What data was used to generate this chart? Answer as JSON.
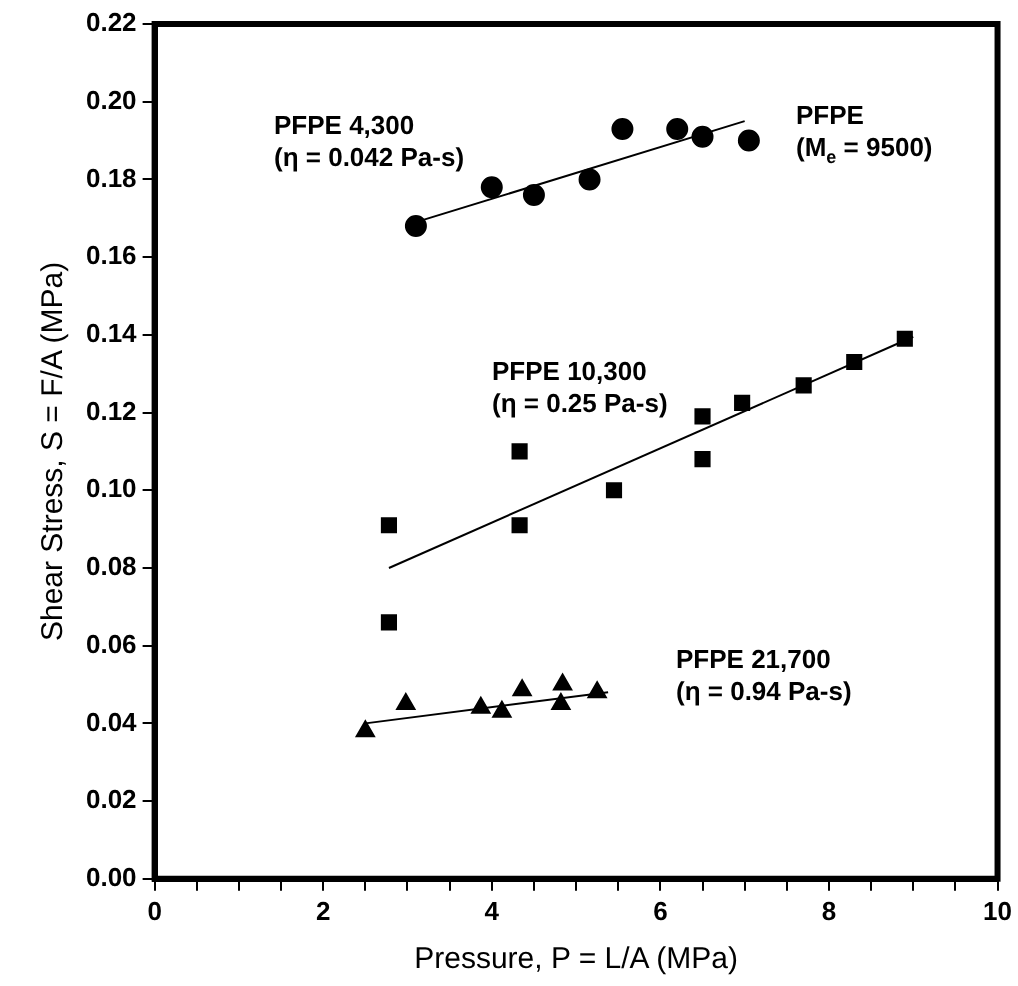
{
  "chart_data": {
    "type": "scatter",
    "xlabel": "Pressure, P = L/A (MPa)",
    "ylabel": "Shear Stress, S = F/A (MPa)",
    "xlim": [
      0,
      10
    ],
    "xticks": [
      0,
      {
        "value": 0.5,
        "label": null
      },
      {
        "value": 1,
        "label": null
      },
      {
        "value": 1.5,
        "label": null
      },
      2,
      {
        "value": 2.5,
        "label": null
      },
      {
        "value": 3,
        "label": null
      },
      {
        "value": 3.5,
        "label": null
      },
      4,
      {
        "value": 4.5,
        "label": null
      },
      {
        "value": 5,
        "label": null
      },
      {
        "value": 5.5,
        "label": null
      },
      6,
      {
        "value": 6.5,
        "label": null
      },
      {
        "value": 7,
        "label": null
      },
      {
        "value": 7.5,
        "label": null
      },
      8,
      {
        "value": 8.5,
        "label": null
      },
      {
        "value": 9,
        "label": null
      },
      {
        "value": 9.5,
        "label": null
      },
      10
    ],
    "ylim": [
      0,
      0.22
    ],
    "yticks": [
      {
        "value": 0,
        "label": "0.00"
      },
      {
        "value": 0.02,
        "label": "0.02"
      },
      {
        "value": 0.04,
        "label": "0.04"
      },
      {
        "value": 0.06,
        "label": "0.06"
      },
      {
        "value": 0.08,
        "label": "0.08"
      },
      {
        "value": 0.1,
        "label": "0.10"
      },
      {
        "value": 0.12,
        "label": "0.12"
      },
      {
        "value": 0.14,
        "label": "0.14"
      },
      {
        "value": 0.16,
        "label": "0.16"
      },
      {
        "value": 0.18,
        "label": "0.18"
      },
      {
        "value": 0.2,
        "label": "0.20"
      },
      {
        "value": 0.22,
        "label": "0.22"
      }
    ],
    "grid": false,
    "legend": false,
    "series": [
      {
        "marker": "circle",
        "color": "#000000",
        "x": [
          3.1,
          4.0,
          4.5,
          5.16,
          5.55,
          6.2,
          6.5,
          7.05
        ],
        "values": [
          0.168,
          0.178,
          0.176,
          0.18,
          0.193,
          0.193,
          0.191,
          0.19
        ]
      },
      {
        "type": "line",
        "marker": "none",
        "color": "#000000",
        "x": [
          3.1,
          7.0
        ],
        "values": [
          0.169,
          0.195
        ]
      },
      {
        "marker": "square",
        "color": "#000000",
        "x": [
          2.78,
          2.78,
          4.33,
          4.33,
          5.45,
          6.5,
          6.5,
          6.97,
          7.7,
          8.3,
          8.9
        ],
        "values": [
          0.091,
          0.066,
          0.11,
          0.091,
          0.1,
          0.108,
          0.119,
          0.1225,
          0.127,
          0.133,
          0.139
        ]
      },
      {
        "type": "line",
        "marker": "none",
        "color": "#000000",
        "x": [
          2.78,
          9.0
        ],
        "values": [
          0.08,
          0.1395
        ]
      },
      {
        "marker": "triangle",
        "color": "#000000",
        "x": [
          2.5,
          2.98,
          3.87,
          4.12,
          4.36,
          4.82,
          4.84,
          5.25
        ],
        "values": [
          0.038,
          0.045,
          0.044,
          0.043,
          0.0485,
          0.045,
          0.05,
          0.048
        ]
      },
      {
        "type": "line",
        "marker": "none",
        "color": "#000000",
        "x": [
          2.5,
          5.38
        ],
        "values": [
          0.04,
          0.048
        ]
      }
    ],
    "annotations": [
      "PFPE 4,300\n(η = 0.042 Pa-s)",
      "PFPE\n(M$_{e}$ = 9500)",
      "PFPE 10,300\n(η = 0.25 Pa-s)",
      "PFPE 21,700\n(η = 0.94 Pa-s)"
    ]
  }
}
